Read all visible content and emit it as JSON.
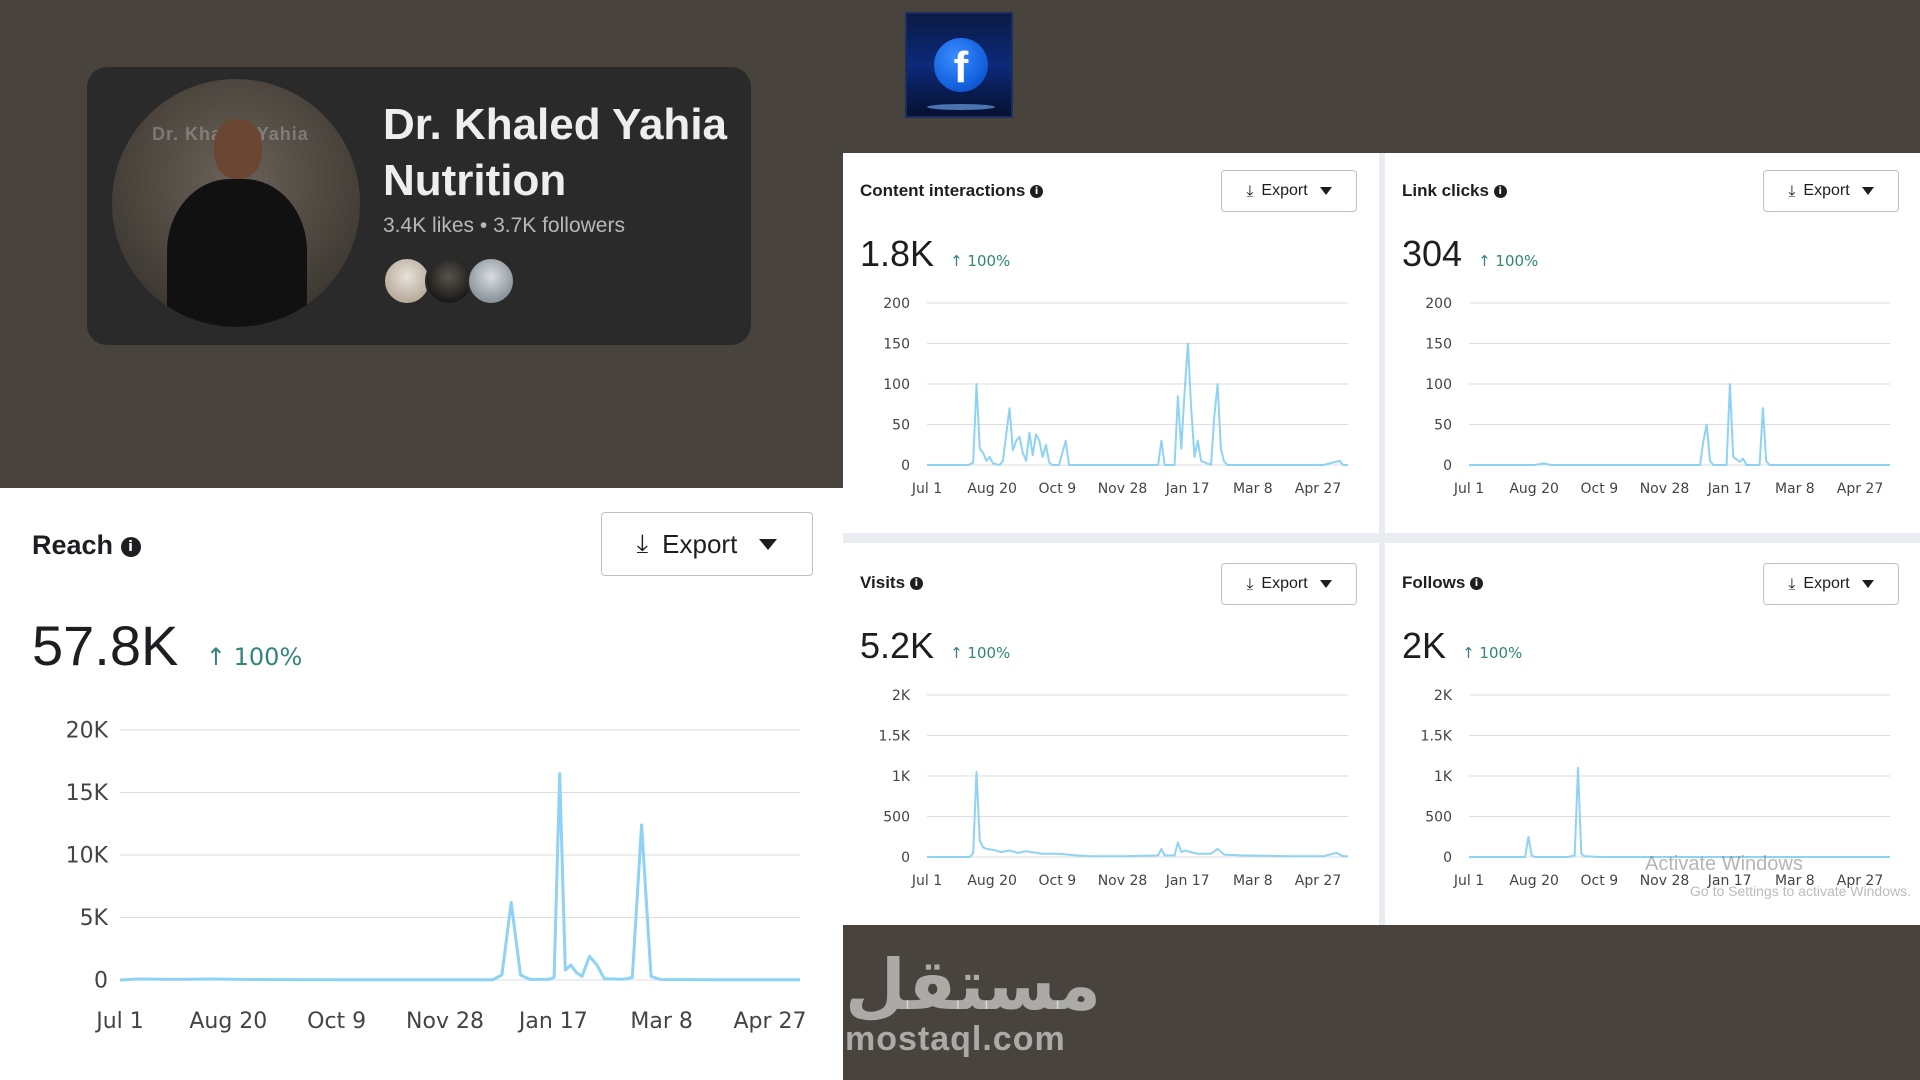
{
  "profile": {
    "name_line1": "Dr. Khaled Yahia",
    "name_line2": "Nutrition",
    "stats": "3.4K likes • 3.7K followers",
    "photo_watermark": "Dr. Khaled Yahia"
  },
  "export_label": "Export",
  "reach": {
    "title": "Reach",
    "value": "57.8K",
    "change": "↑ 100%"
  },
  "content_interactions": {
    "title": "Content interactions",
    "value": "1.8K",
    "change": "↑ 100%"
  },
  "link_clicks": {
    "title": "Link clicks",
    "value": "304",
    "change": "↑ 100%"
  },
  "visits": {
    "title": "Visits",
    "value": "5.2K",
    "change": "↑ 100%"
  },
  "follows": {
    "title": "Follows",
    "value": "2K",
    "change": "↑ 100%"
  },
  "watermark": {
    "arabic": "مستقل",
    "latin": "mostaql.com",
    "os_notice": "Activate Windows",
    "os_notice_sub": "Go to Settings to activate Windows."
  },
  "colors": {
    "line": "#8fd3f4",
    "grid": "#dadde1",
    "accent_change": "#31857a"
  },
  "chart_data": [
    {
      "id": "reach",
      "type": "line",
      "title": "Reach",
      "x_ticks": [
        "Jul 1",
        "Aug 20",
        "Oct 9",
        "Nov 28",
        "Jan 17",
        "Mar 8",
        "Apr 27"
      ],
      "y_ticks": [
        "0",
        "5K",
        "10K",
        "15K",
        "20K"
      ],
      "ylim": [
        0,
        20000
      ],
      "points": [
        [
          0,
          0
        ],
        [
          10,
          80
        ],
        [
          30,
          50
        ],
        [
          50,
          80
        ],
        [
          70,
          40
        ],
        [
          90,
          30
        ],
        [
          120,
          20
        ],
        [
          150,
          20
        ],
        [
          180,
          20
        ],
        [
          190,
          20
        ],
        [
          200,
          20
        ],
        [
          205,
          400
        ],
        [
          210,
          6200
        ],
        [
          215,
          400
        ],
        [
          220,
          50
        ],
        [
          230,
          50
        ],
        [
          233,
          200
        ],
        [
          236,
          16500
        ],
        [
          239,
          800
        ],
        [
          242,
          1200
        ],
        [
          245,
          600
        ],
        [
          248,
          300
        ],
        [
          252,
          1900
        ],
        [
          256,
          1200
        ],
        [
          260,
          100
        ],
        [
          270,
          60
        ],
        [
          275,
          200
        ],
        [
          280,
          12400
        ],
        [
          285,
          300
        ],
        [
          290,
          40
        ],
        [
          320,
          20
        ],
        [
          350,
          20
        ],
        [
          365,
          20
        ]
      ],
      "xmax": 365
    },
    {
      "id": "content_interactions",
      "type": "line",
      "title": "Content interactions",
      "x_ticks": [
        "Jul 1",
        "Aug 20",
        "Oct 9",
        "Nov 28",
        "Jan 17",
        "Mar 8",
        "Apr 27"
      ],
      "y_ticks": [
        "0",
        "50",
        "100",
        "150",
        "200"
      ],
      "ylim": [
        0,
        200
      ],
      "points": [
        [
          0,
          0
        ],
        [
          25,
          0
        ],
        [
          28,
          3
        ],
        [
          30,
          100
        ],
        [
          32,
          20
        ],
        [
          34,
          15
        ],
        [
          36,
          5
        ],
        [
          38,
          10
        ],
        [
          40,
          2
        ],
        [
          44,
          0
        ],
        [
          46,
          5
        ],
        [
          50,
          70
        ],
        [
          52,
          18
        ],
        [
          54,
          30
        ],
        [
          56,
          35
        ],
        [
          58,
          15
        ],
        [
          60,
          5
        ],
        [
          62,
          40
        ],
        [
          64,
          12
        ],
        [
          66,
          38
        ],
        [
          68,
          30
        ],
        [
          70,
          10
        ],
        [
          72,
          25
        ],
        [
          74,
          3
        ],
        [
          76,
          0
        ],
        [
          80,
          0
        ],
        [
          84,
          30
        ],
        [
          86,
          0
        ],
        [
          120,
          0
        ],
        [
          140,
          0
        ],
        [
          142,
          30
        ],
        [
          144,
          0
        ],
        [
          150,
          0
        ],
        [
          152,
          85
        ],
        [
          154,
          20
        ],
        [
          156,
          90
        ],
        [
          158,
          150
        ],
        [
          160,
          70
        ],
        [
          162,
          10
        ],
        [
          164,
          30
        ],
        [
          166,
          5
        ],
        [
          172,
          0
        ],
        [
          174,
          60
        ],
        [
          176,
          100
        ],
        [
          178,
          20
        ],
        [
          180,
          4
        ],
        [
          182,
          0
        ],
        [
          200,
          0
        ],
        [
          230,
          0
        ],
        [
          240,
          0
        ],
        [
          250,
          5
        ],
        [
          252,
          0
        ],
        [
          255,
          0
        ]
      ],
      "xmax": 255
    },
    {
      "id": "link_clicks",
      "type": "line",
      "title": "Link clicks",
      "x_ticks": [
        "Jul 1",
        "Aug 20",
        "Oct 9",
        "Nov 28",
        "Jan 17",
        "Mar 8",
        "Apr 27"
      ],
      "y_ticks": [
        "0",
        "50",
        "100",
        "150",
        "200"
      ],
      "ylim": [
        0,
        200
      ],
      "points": [
        [
          0,
          0
        ],
        [
          40,
          0
        ],
        [
          45,
          2
        ],
        [
          50,
          0
        ],
        [
          100,
          0
        ],
        [
          140,
          0
        ],
        [
          142,
          30
        ],
        [
          144,
          50
        ],
        [
          146,
          5
        ],
        [
          148,
          0
        ],
        [
          156,
          0
        ],
        [
          158,
          100
        ],
        [
          160,
          10
        ],
        [
          164,
          4
        ],
        [
          166,
          8
        ],
        [
          168,
          0
        ],
        [
          176,
          0
        ],
        [
          178,
          70
        ],
        [
          180,
          5
        ],
        [
          182,
          0
        ],
        [
          220,
          0
        ],
        [
          255,
          0
        ]
      ],
      "xmax": 255
    },
    {
      "id": "visits",
      "type": "line",
      "title": "Visits",
      "x_ticks": [
        "Jul 1",
        "Aug 20",
        "Oct 9",
        "Nov 28",
        "Jan 17",
        "Mar 8",
        "Apr 27"
      ],
      "y_ticks": [
        "0",
        "500",
        "1K",
        "1.5K",
        "2K"
      ],
      "ylim": [
        0,
        2000
      ],
      "points": [
        [
          0,
          0
        ],
        [
          26,
          0
        ],
        [
          28,
          50
        ],
        [
          30,
          1050
        ],
        [
          32,
          200
        ],
        [
          34,
          120
        ],
        [
          36,
          100
        ],
        [
          40,
          90
        ],
        [
          45,
          60
        ],
        [
          50,
          80
        ],
        [
          55,
          50
        ],
        [
          60,
          70
        ],
        [
          70,
          40
        ],
        [
          80,
          40
        ],
        [
          90,
          20
        ],
        [
          100,
          10
        ],
        [
          120,
          10
        ],
        [
          140,
          20
        ],
        [
          142,
          100
        ],
        [
          144,
          20
        ],
        [
          150,
          20
        ],
        [
          152,
          180
        ],
        [
          154,
          60
        ],
        [
          156,
          80
        ],
        [
          160,
          60
        ],
        [
          164,
          40
        ],
        [
          172,
          40
        ],
        [
          176,
          100
        ],
        [
          180,
          30
        ],
        [
          190,
          20
        ],
        [
          220,
          10
        ],
        [
          240,
          10
        ],
        [
          248,
          50
        ],
        [
          252,
          10
        ],
        [
          255,
          10
        ]
      ],
      "xmax": 255
    },
    {
      "id": "follows",
      "type": "line",
      "title": "Follows",
      "x_ticks": [
        "Jul 1",
        "Aug 20",
        "Oct 9",
        "Nov 28",
        "Jan 17",
        "Mar 8",
        "Apr 27"
      ],
      "y_ticks": [
        "0",
        "500",
        "1K",
        "1.5K",
        "2K"
      ],
      "ylim": [
        0,
        2000
      ],
      "points": [
        [
          0,
          0
        ],
        [
          34,
          0
        ],
        [
          36,
          250
        ],
        [
          38,
          20
        ],
        [
          40,
          0
        ],
        [
          60,
          0
        ],
        [
          64,
          20
        ],
        [
          66,
          1100
        ],
        [
          68,
          40
        ],
        [
          70,
          10
        ],
        [
          80,
          0
        ],
        [
          120,
          0
        ],
        [
          160,
          0
        ],
        [
          200,
          0
        ],
        [
          255,
          0
        ]
      ],
      "xmax": 255
    }
  ]
}
